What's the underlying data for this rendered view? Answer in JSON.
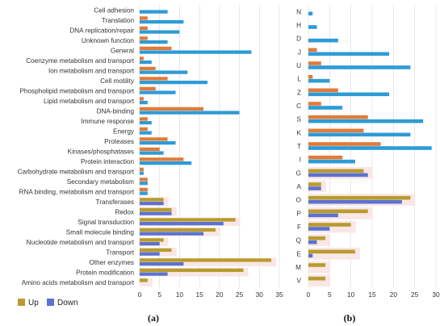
{
  "colors": {
    "up": "#E07B39",
    "down": "#2E9BD6",
    "up_highlight": "#B99B2E",
    "down_highlight": "#5B72D0",
    "grid": "#D9D9D9"
  },
  "legend": {
    "up": "Up",
    "down": "Down"
  },
  "chart_data": [
    {
      "type": "bar",
      "orientation": "horizontal",
      "panel_label": "(a)",
      "xlim": [
        0,
        35
      ],
      "xticks": [
        "0",
        "5",
        "10",
        "15",
        "20",
        "25",
        "30",
        "35"
      ],
      "categories": [
        "Cell adhesion",
        "Translation",
        "DNA replication/repair",
        "Unknown function",
        "General",
        "Coenzyme metabolism and transport",
        "Ion metabolism and transport",
        "Cell motility",
        "Phospholipid metabolism and transport",
        "Lipid metabolism and transport",
        "DNA-binding",
        "Immune response",
        "Energy",
        "Proteases",
        "Kinases/phosphatases",
        "Protein interaction",
        "Carbohydrate metabolism and transport",
        "Secondary metabolism",
        "RNA binding, metabolism and transport",
        "Transferases",
        "Redox",
        "Signal transduction",
        "Small molecule binding",
        "Nucleotide metabolism and transport",
        "Transport",
        "Other enzymes",
        "Protein modification",
        "Amino acids metabolism and transport"
      ],
      "highlighted": [
        "Transferases",
        "Redox",
        "Signal transduction",
        "Small molecule binding",
        "Nucleotide metabolism and transport",
        "Transport",
        "Other enzymes",
        "Protein modification",
        "Amino acids metabolism and transport"
      ],
      "series": [
        {
          "name": "Up",
          "values": [
            0,
            2,
            2,
            2,
            8,
            1,
            4,
            7,
            4,
            1,
            16,
            2,
            2,
            7,
            5,
            11,
            1,
            2,
            2,
            6,
            8,
            24,
            19,
            6,
            8,
            33,
            26,
            2
          ]
        },
        {
          "name": "Down",
          "values": [
            7,
            11,
            10,
            7,
            28,
            3,
            12,
            17,
            9,
            2,
            25,
            3,
            3,
            9,
            6,
            13,
            1,
            2,
            2,
            6,
            8,
            21,
            16,
            5,
            5,
            11,
            7,
            0
          ]
        }
      ]
    },
    {
      "type": "bar",
      "orientation": "horizontal",
      "panel_label": "(b)",
      "xlim": [
        0,
        30
      ],
      "xticks": [
        "0",
        "5",
        "10",
        "15",
        "20",
        "25",
        "30"
      ],
      "categories": [
        "N",
        "H",
        "D",
        "J",
        "U",
        "L",
        "Z",
        "C",
        "S",
        "K",
        "T",
        "I",
        "G",
        "A",
        "O",
        "P",
        "F",
        "Q",
        "E",
        "M",
        "V"
      ],
      "highlighted": [
        "G",
        "A",
        "O",
        "P",
        "F",
        "Q",
        "E",
        "M",
        "V"
      ],
      "series": [
        {
          "name": "Up",
          "values": [
            0,
            0,
            0,
            2,
            3,
            1,
            7,
            3,
            14,
            13,
            17,
            8,
            13,
            3,
            24,
            14,
            10,
            4,
            11,
            4,
            4
          ]
        },
        {
          "name": "Down",
          "values": [
            1,
            2,
            7,
            19,
            24,
            5,
            19,
            8,
            27,
            24,
            29,
            11,
            14,
            3,
            22,
            7,
            5,
            2,
            1,
            0,
            0
          ]
        }
      ]
    }
  ]
}
